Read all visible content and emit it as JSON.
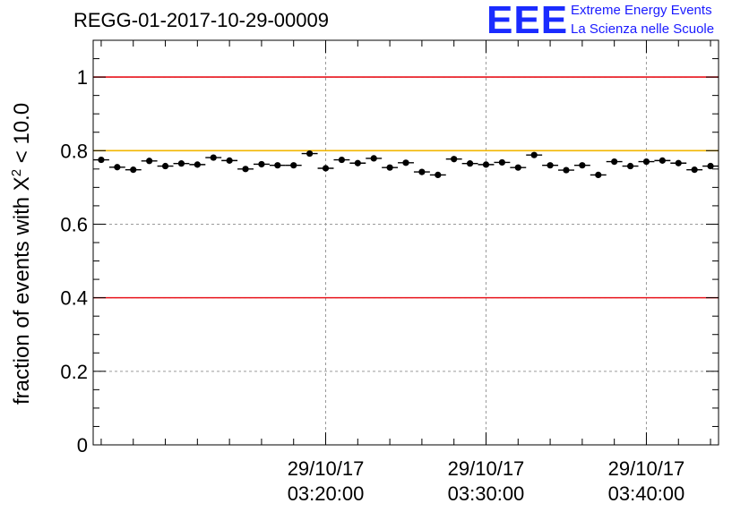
{
  "header": {
    "run_title": "REGG-01-2017-10-29-00009",
    "logo_text": "EEE",
    "logo_line1": "Extreme Energy Events",
    "logo_line2": "La Scienza nelle Scuole"
  },
  "colors": {
    "reference_line": "#e8141c",
    "threshold_line": "#f2b600",
    "logo": "#1a2bff"
  },
  "chart_data": {
    "type": "scatter",
    "title": "REGG-01-2017-10-29-00009",
    "ylabel_main": "fraction of events with X",
    "ylabel_sup": "2",
    "ylabel_tail": " < 10.0",
    "xlabel": "",
    "ylim": [
      0,
      1.1
    ],
    "xlim_minutes": [
      -4.5,
      34.5
    ],
    "yticks": [
      0,
      0.2,
      0.4,
      0.6,
      0.8,
      1
    ],
    "ytick_labels": [
      "0",
      "0.2",
      "0.4",
      "0.6",
      "0.8",
      "1"
    ],
    "xticks": [
      {
        "minute": 10,
        "date": "29/10/17",
        "time": "03:20:00"
      },
      {
        "minute": 20,
        "date": "29/10/17",
        "time": "03:30:00"
      },
      {
        "minute": 30,
        "date": "29/10/17",
        "time": "03:40:00"
      }
    ],
    "x_origin_time": "03:10:00",
    "bin_width_minutes": 1,
    "x_minutes": [
      -4,
      -3,
      -2,
      -1,
      0,
      1,
      2,
      3,
      4,
      5,
      6,
      7,
      8,
      9,
      10,
      11,
      12,
      13,
      14,
      15,
      16,
      17,
      18,
      19,
      20,
      21,
      22,
      23,
      24,
      25,
      26,
      27,
      28,
      29,
      30,
      31,
      32,
      33,
      34
    ],
    "values": [
      0.775,
      0.755,
      0.748,
      0.772,
      0.758,
      0.765,
      0.762,
      0.781,
      0.773,
      0.75,
      0.763,
      0.76,
      0.76,
      0.792,
      0.752,
      0.775,
      0.766,
      0.779,
      0.754,
      0.767,
      0.742,
      0.734,
      0.777,
      0.765,
      0.762,
      0.768,
      0.754,
      0.788,
      0.76,
      0.747,
      0.76,
      0.734,
      0.77,
      0.758,
      0.77,
      0.773,
      0.766,
      0.748,
      0.758
    ],
    "error": 0.006,
    "reference_lines": [
      {
        "y": 1.0,
        "color": "#e8141c"
      },
      {
        "y": 0.8,
        "color": "#f2b600"
      },
      {
        "y": 0.4,
        "color": "#e8141c"
      }
    ],
    "grid": true
  }
}
